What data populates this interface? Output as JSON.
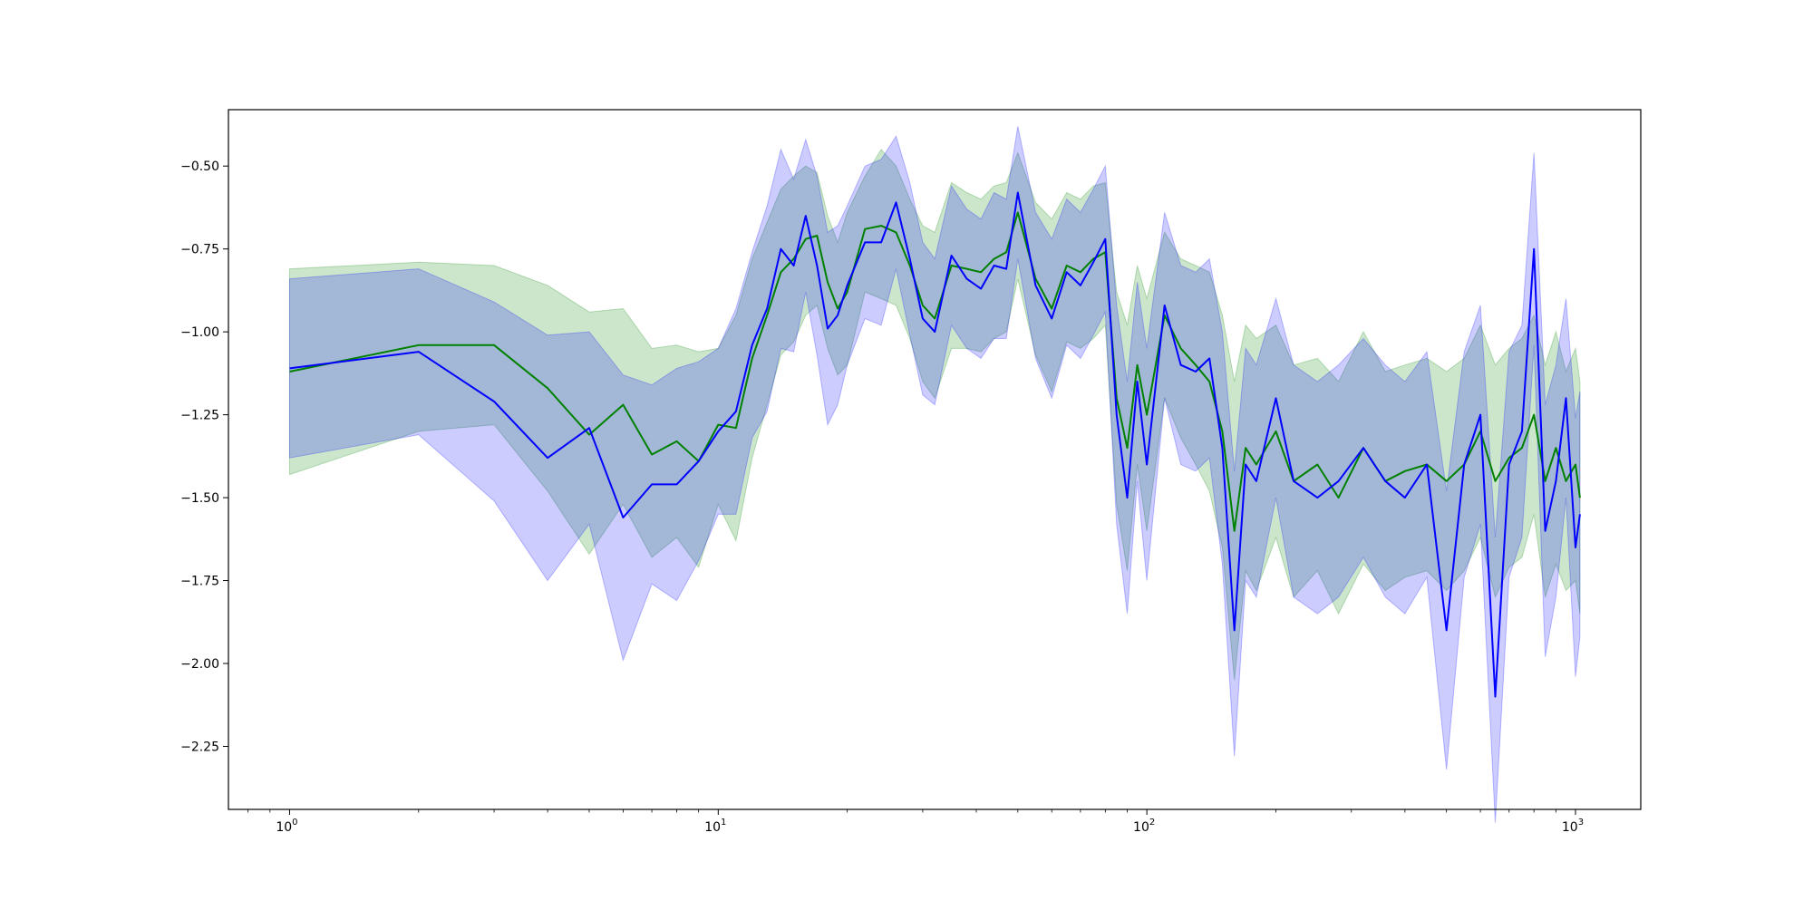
{
  "chart_data": {
    "type": "line",
    "title": "",
    "xlabel": "",
    "ylabel": "",
    "x_scale": "log",
    "xlim": [
      0.72,
      1420
    ],
    "ylim": [
      -2.44,
      -0.33
    ],
    "grid": false,
    "legend": "none",
    "x_ticks": [
      {
        "value": 1,
        "base": "10",
        "exp": "0"
      },
      {
        "value": 10,
        "base": "10",
        "exp": "1"
      },
      {
        "value": 100,
        "base": "10",
        "exp": "2"
      },
      {
        "value": 1000,
        "base": "10",
        "exp": "3"
      }
    ],
    "y_ticks": [
      {
        "value": -0.5,
        "label": "−0.50"
      },
      {
        "value": -0.75,
        "label": "−0.75"
      },
      {
        "value": -1.0,
        "label": "−1.00"
      },
      {
        "value": -1.25,
        "label": "−1.25"
      },
      {
        "value": -1.5,
        "label": "−1.50"
      },
      {
        "value": -1.75,
        "label": "−1.75"
      },
      {
        "value": -2.0,
        "label": "−2.00"
      },
      {
        "value": -2.25,
        "label": "−2.25"
      }
    ],
    "series": [
      {
        "color": "#008000",
        "band_color": "#008000",
        "band_opacity": 0.2,
        "x": [
          1,
          2,
          3,
          4,
          5,
          6,
          7,
          8,
          9,
          10,
          11,
          12,
          13,
          14,
          15,
          16,
          17,
          18,
          19,
          20,
          22,
          24,
          26,
          28,
          30,
          32,
          35,
          38,
          41,
          44,
          47,
          50,
          55,
          60,
          65,
          70,
          75,
          80,
          85,
          90,
          95,
          100,
          110,
          120,
          130,
          140,
          150,
          160,
          170,
          180,
          200,
          220,
          250,
          280,
          320,
          360,
          400,
          450,
          500,
          550,
          600,
          650,
          700,
          750,
          800,
          850,
          900,
          950,
          1000,
          1024
        ],
        "y": [
          -1.12,
          -1.04,
          -1.04,
          -1.17,
          -1.31,
          -1.22,
          -1.37,
          -1.33,
          -1.39,
          -1.28,
          -1.29,
          -1.08,
          -0.95,
          -0.82,
          -0.78,
          -0.72,
          -0.71,
          -0.85,
          -0.93,
          -0.88,
          -0.69,
          -0.68,
          -0.7,
          -0.8,
          -0.92,
          -0.96,
          -0.8,
          -0.81,
          -0.82,
          -0.78,
          -0.76,
          -0.64,
          -0.84,
          -0.93,
          -0.8,
          -0.82,
          -0.78,
          -0.76,
          -1.2,
          -1.35,
          -1.1,
          -1.25,
          -0.95,
          -1.05,
          -1.1,
          -1.15,
          -1.3,
          -1.6,
          -1.35,
          -1.4,
          -1.3,
          -1.45,
          -1.4,
          -1.5,
          -1.35,
          -1.45,
          -1.42,
          -1.4,
          -1.45,
          -1.4,
          -1.3,
          -1.45,
          -1.38,
          -1.35,
          -1.25,
          -1.45,
          -1.35,
          -1.45,
          -1.4,
          -1.5
        ],
        "upper": [
          -0.81,
          -0.79,
          -0.8,
          -0.86,
          -0.94,
          -0.93,
          -1.05,
          -1.04,
          -1.06,
          -1.05,
          -0.95,
          -0.78,
          -0.67,
          -0.57,
          -0.53,
          -0.5,
          -0.52,
          -0.65,
          -0.73,
          -0.64,
          -0.53,
          -0.45,
          -0.5,
          -0.6,
          -0.68,
          -0.7,
          -0.55,
          -0.58,
          -0.6,
          -0.56,
          -0.55,
          -0.46,
          -0.61,
          -0.66,
          -0.58,
          -0.6,
          -0.56,
          -0.55,
          -0.88,
          -0.98,
          -0.8,
          -0.9,
          -0.7,
          -0.78,
          -0.8,
          -0.82,
          -0.95,
          -1.15,
          -0.98,
          -1.02,
          -0.98,
          -1.1,
          -1.08,
          -1.15,
          -1.0,
          -1.12,
          -1.1,
          -1.08,
          -1.12,
          -1.08,
          -0.98,
          -1.1,
          -1.05,
          -1.02,
          -0.95,
          -1.1,
          -1.0,
          -1.12,
          -1.05,
          -1.15
        ],
        "lower": [
          -1.43,
          -1.3,
          -1.28,
          -1.48,
          -1.67,
          -1.52,
          -1.68,
          -1.62,
          -1.71,
          -1.52,
          -1.63,
          -1.38,
          -1.22,
          -1.07,
          -1.03,
          -0.95,
          -0.92,
          -1.05,
          -1.13,
          -1.1,
          -0.88,
          -0.9,
          -0.92,
          -1.02,
          -1.15,
          -1.2,
          -1.05,
          -1.05,
          -1.06,
          -1.02,
          -1.0,
          -0.84,
          -1.07,
          -1.18,
          -1.03,
          -1.05,
          -1.02,
          -0.98,
          -1.52,
          -1.72,
          -1.4,
          -1.6,
          -1.2,
          -1.32,
          -1.4,
          -1.48,
          -1.65,
          -2.05,
          -1.72,
          -1.78,
          -1.62,
          -1.8,
          -1.72,
          -1.85,
          -1.7,
          -1.78,
          -1.74,
          -1.72,
          -1.78,
          -1.72,
          -1.62,
          -1.8,
          -1.71,
          -1.68,
          -1.55,
          -1.8,
          -1.7,
          -1.78,
          -1.75,
          -1.85
        ]
      },
      {
        "color": "#0000ff",
        "band_color": "#0000ff",
        "band_opacity": 0.2,
        "x": [
          1,
          2,
          3,
          4,
          5,
          6,
          7,
          8,
          9,
          10,
          11,
          12,
          13,
          14,
          15,
          16,
          17,
          18,
          19,
          20,
          22,
          24,
          26,
          28,
          30,
          32,
          35,
          38,
          41,
          44,
          47,
          50,
          55,
          60,
          65,
          70,
          75,
          80,
          85,
          90,
          95,
          100,
          110,
          120,
          130,
          140,
          150,
          160,
          170,
          180,
          200,
          220,
          250,
          280,
          320,
          360,
          400,
          450,
          500,
          550,
          600,
          650,
          700,
          750,
          800,
          850,
          900,
          950,
          1000,
          1024
        ],
        "y": [
          -1.11,
          -1.06,
          -1.21,
          -1.38,
          -1.29,
          -1.56,
          -1.46,
          -1.46,
          -1.39,
          -1.3,
          -1.24,
          -1.04,
          -0.93,
          -0.75,
          -0.8,
          -0.65,
          -0.8,
          -0.99,
          -0.95,
          -0.86,
          -0.73,
          -0.73,
          -0.61,
          -0.78,
          -0.96,
          -1.0,
          -0.77,
          -0.84,
          -0.87,
          -0.8,
          -0.81,
          -0.58,
          -0.86,
          -0.96,
          -0.82,
          -0.86,
          -0.79,
          -0.72,
          -1.25,
          -1.5,
          -1.15,
          -1.4,
          -0.92,
          -1.1,
          -1.12,
          -1.08,
          -1.35,
          -1.9,
          -1.4,
          -1.45,
          -1.2,
          -1.45,
          -1.5,
          -1.45,
          -1.35,
          -1.45,
          -1.5,
          -1.4,
          -1.9,
          -1.4,
          -1.25,
          -2.1,
          -1.4,
          -1.3,
          -0.75,
          -1.6,
          -1.45,
          -1.2,
          -1.65,
          -1.55
        ],
        "upper": [
          -0.84,
          -0.81,
          -0.91,
          -1.01,
          -1.0,
          -1.13,
          -1.16,
          -1.11,
          -1.09,
          -1.05,
          -0.93,
          -0.76,
          -0.62,
          -0.45,
          -0.54,
          -0.42,
          -0.53,
          -0.7,
          -0.68,
          -0.62,
          -0.5,
          -0.48,
          -0.41,
          -0.55,
          -0.73,
          -0.78,
          -0.56,
          -0.63,
          -0.66,
          -0.58,
          -0.6,
          -0.38,
          -0.64,
          -0.72,
          -0.6,
          -0.64,
          -0.57,
          -0.5,
          -0.92,
          -1.15,
          -0.85,
          -1.05,
          -0.64,
          -0.8,
          -0.82,
          -0.78,
          -1.0,
          -1.42,
          -1.05,
          -1.1,
          -0.9,
          -1.1,
          -1.15,
          -1.1,
          -1.02,
          -1.1,
          -1.15,
          -1.06,
          -1.48,
          -1.06,
          -0.92,
          -1.62,
          -1.06,
          -0.98,
          -0.46,
          -1.22,
          -1.1,
          -0.9,
          -1.26,
          -1.18
        ],
        "lower": [
          -1.38,
          -1.31,
          -1.51,
          -1.75,
          -1.58,
          -1.99,
          -1.76,
          -1.81,
          -1.69,
          -1.55,
          -1.55,
          -1.32,
          -1.24,
          -1.05,
          -1.06,
          -0.88,
          -1.07,
          -1.28,
          -1.22,
          -1.1,
          -0.96,
          -0.98,
          -0.81,
          -1.01,
          -1.19,
          -1.22,
          -0.98,
          -1.05,
          -1.08,
          -1.02,
          -1.02,
          -0.78,
          -1.08,
          -1.2,
          -1.04,
          -1.08,
          -1.01,
          -0.94,
          -1.58,
          -1.85,
          -1.45,
          -1.75,
          -1.2,
          -1.4,
          -1.42,
          -1.38,
          -1.7,
          -2.28,
          -1.75,
          -1.8,
          -1.5,
          -1.8,
          -1.85,
          -1.8,
          -1.68,
          -1.8,
          -1.85,
          -1.74,
          -2.32,
          -1.74,
          -1.58,
          -2.48,
          -1.74,
          -1.62,
          -1.04,
          -1.98,
          -1.8,
          -1.5,
          -2.04,
          -1.92
        ]
      }
    ]
  }
}
